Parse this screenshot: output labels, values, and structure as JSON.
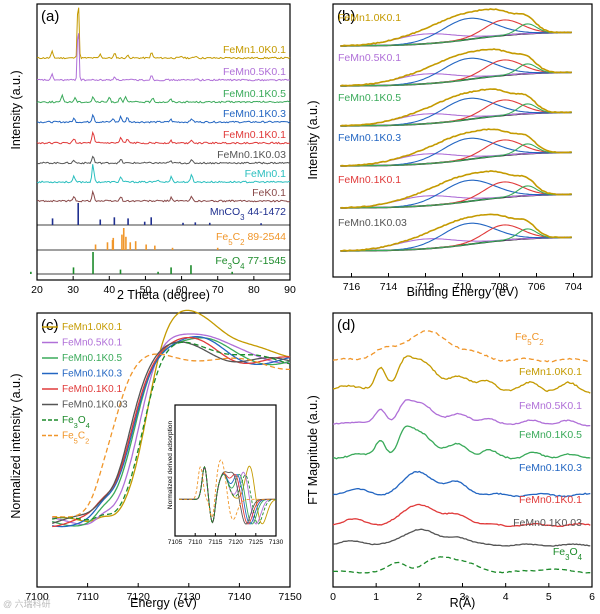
{
  "colors": {
    "gold": "#c49a00",
    "purple": "#b070d8",
    "green": "#3aaa5a",
    "blue": "#2366c2",
    "red": "#e03a3a",
    "dark": "#555555",
    "teal": "#2bbfbf",
    "brown": "#8a4a4a",
    "navy": "#1f2f8f",
    "orange": "#f0962a",
    "darkgreen": "#1c8a2a"
  },
  "chart_data": [
    {
      "panel": "(a)",
      "type": "line",
      "title": "",
      "xlabel": "2 Theta (degree)",
      "ylabel": "Intensity (a.u.)",
      "xlim": [
        20,
        90
      ],
      "xticks": [
        20,
        30,
        40,
        50,
        60,
        70,
        80,
        90
      ],
      "series": [
        {
          "name": "FeMn1.0K0.1",
          "color": "gold",
          "peaks": [
            [
              24.2,
              0.35
            ],
            [
              31.4,
              1.0
            ],
            [
              37.5,
              0.2
            ],
            [
              41.5,
              0.25
            ],
            [
              45.2,
              0.15
            ],
            [
              51.7,
              0.3
            ],
            [
              60,
              0.1
            ],
            [
              64,
              0.12
            ]
          ]
        },
        {
          "name": "FeMn0.5K0.1",
          "color": "purple",
          "peaks": [
            [
              24.2,
              0.3
            ],
            [
              31.4,
              0.9
            ],
            [
              41.5,
              0.2
            ],
            [
              51.7,
              0.25
            ],
            [
              64,
              0.1
            ]
          ]
        },
        {
          "name": "FeMn0.1K0.5",
          "color": "green",
          "peaks": [
            [
              27,
              0.35
            ],
            [
              30.5,
              0.25
            ],
            [
              35.5,
              0.3
            ],
            [
              40,
              0.25
            ],
            [
              43,
              0.3
            ],
            [
              44.5,
              0.25
            ],
            [
              52,
              0.2
            ],
            [
              57,
              0.15
            ]
          ]
        },
        {
          "name": "FeMn0.1K0.3",
          "color": "blue",
          "peaks": [
            [
              30.2,
              0.2
            ],
            [
              35.5,
              0.45
            ],
            [
              41,
              0.2
            ],
            [
              43.2,
              0.3
            ],
            [
              45,
              0.25
            ],
            [
              57,
              0.15
            ],
            [
              62.8,
              0.2
            ]
          ]
        },
        {
          "name": "FeMn0.1K0.1",
          "color": "red",
          "peaks": [
            [
              30.2,
              0.25
            ],
            [
              35.5,
              0.6
            ],
            [
              43.2,
              0.3
            ],
            [
              45,
              0.2
            ],
            [
              57,
              0.15
            ],
            [
              62.8,
              0.2
            ]
          ]
        },
        {
          "name": "FeMn0.1K0.03",
          "color": "dark",
          "peaks": [
            [
              30.2,
              0.15
            ],
            [
              35.5,
              0.4
            ],
            [
              43.2,
              0.2
            ],
            [
              57,
              0.1
            ],
            [
              62.8,
              0.15
            ]
          ]
        },
        {
          "name": "FeMn0.1",
          "color": "teal",
          "peaks": [
            [
              30.2,
              0.3
            ],
            [
              35.5,
              0.9
            ],
            [
              43.2,
              0.3
            ],
            [
              53.5,
              0.15
            ],
            [
              57.2,
              0.3
            ],
            [
              62.8,
              0.4
            ]
          ]
        },
        {
          "name": "FeK0.1",
          "color": "brown",
          "peaks": [
            [
              30.2,
              0.25
            ],
            [
              35.5,
              0.55
            ],
            [
              43.2,
              0.25
            ],
            [
              57.2,
              0.2
            ],
            [
              62.8,
              0.25
            ]
          ]
        }
      ],
      "references": [
        {
          "name": "MnCO3 44-1472",
          "base": "MnCO",
          "sub": "3",
          "rest": " 44-1472",
          "color": "navy",
          "sticks": [
            [
              24.3,
              0.3
            ],
            [
              31.4,
              1.0
            ],
            [
              37.5,
              0.25
            ],
            [
              41.4,
              0.35
            ],
            [
              45.2,
              0.3
            ],
            [
              49.8,
              0.15
            ],
            [
              51.6,
              0.35
            ],
            [
              60.4,
              0.1
            ],
            [
              63.8,
              0.12
            ],
            [
              67.8,
              0.1
            ],
            [
              82,
              0.08
            ]
          ]
        },
        {
          "name": "Fe5C2 89-2544",
          "base": "Fe",
          "sub": "5",
          "mid": "C",
          "sub2": "2",
          "rest": " 89-2544",
          "color": "orange",
          "sticks": [
            [
              36.2,
              0.25
            ],
            [
              39.5,
              0.35
            ],
            [
              40.9,
              0.45
            ],
            [
              41.1,
              0.55
            ],
            [
              43.5,
              0.7
            ],
            [
              44.0,
              1.0
            ],
            [
              44.6,
              0.6
            ],
            [
              45.8,
              0.35
            ],
            [
              47.3,
              0.4
            ],
            [
              50.2,
              0.25
            ],
            [
              52.6,
              0.2
            ],
            [
              57.5,
              0.1
            ],
            [
              70,
              0.1
            ]
          ]
        },
        {
          "name": "Fe3O4 77-1545",
          "base": "Fe",
          "sub": "3",
          "mid": "O",
          "sub2": "4",
          "rest": " 77-1545",
          "color": "darkgreen",
          "sticks": [
            [
              18.3,
              0.1
            ],
            [
              30.1,
              0.3
            ],
            [
              35.5,
              1.0
            ],
            [
              43.1,
              0.2
            ],
            [
              53.5,
              0.1
            ],
            [
              57.1,
              0.3
            ],
            [
              62.6,
              0.4
            ],
            [
              74,
              0.1
            ]
          ]
        }
      ]
    },
    {
      "panel": "(b)",
      "type": "line",
      "title": "",
      "xlabel": "Binding Energy (eV)",
      "ylabel": "Intensity (a.u.)",
      "xlim": [
        717,
        703
      ],
      "xticks": [
        716,
        714,
        712,
        710,
        708,
        706,
        704
      ],
      "samples": [
        {
          "name": "FeMn1.0K0.1",
          "color": "gold"
        },
        {
          "name": "FeMn0.5K0.1",
          "color": "purple"
        },
        {
          "name": "FeMn0.1K0.5",
          "color": "green"
        },
        {
          "name": "FeMn0.1K0.3",
          "color": "blue"
        },
        {
          "name": "FeMn0.1K0.1",
          "color": "red"
        },
        {
          "name": "FeMn0.1K0.03",
          "color": "dark"
        }
      ],
      "components": [
        {
          "center": 712.0,
          "width": 1.6,
          "height": 0.35,
          "color": "#b070d8"
        },
        {
          "center": 709.7,
          "width": 1.4,
          "height": 0.75,
          "color": "#2366c2"
        },
        {
          "center": 707.8,
          "width": 1.0,
          "height": 0.55,
          "color": "#e03a3a"
        },
        {
          "center": 706.5,
          "width": 0.5,
          "height": 0.35,
          "color": "#3aaa5a"
        }
      ]
    },
    {
      "panel": "(c)",
      "type": "line",
      "title": "",
      "xlabel": "Energy (eV)",
      "ylabel": "Normalized intensity (a.u.)",
      "xlim": [
        7100,
        7150
      ],
      "xticks": [
        7100,
        7110,
        7120,
        7130,
        7140,
        7150
      ],
      "legend": [
        {
          "name": "FeMn1.0K0.1",
          "color": "gold",
          "dash": false
        },
        {
          "name": "FeMn0.5K0.1",
          "color": "purple",
          "dash": false
        },
        {
          "name": "FeMn0.1K0.5",
          "color": "green",
          "dash": false
        },
        {
          "name": "FeMn0.1K0.3",
          "color": "blue",
          "dash": false
        },
        {
          "name": "FeMn0.1K0.1",
          "color": "red",
          "dash": false
        },
        {
          "name": "FeMn0.1K0.03",
          "color": "dark",
          "dash": false
        },
        {
          "name": "Fe3O4",
          "base": "Fe",
          "sub": "3",
          "mid": "O",
          "sub2": "4",
          "color": "darkgreen",
          "dash": true
        },
        {
          "name": "Fe5C2",
          "base": "Fe",
          "sub": "5",
          "mid": "C",
          "sub2": "2",
          "color": "orange",
          "dash": true
        }
      ],
      "edges": [
        {
          "color": "gold",
          "e0": 7122.0,
          "peak": 1.45,
          "dash": false
        },
        {
          "color": "purple",
          "e0": 7120.5,
          "peak": 1.28,
          "dash": false
        },
        {
          "color": "green",
          "e0": 7119.5,
          "peak": 1.22,
          "dash": false
        },
        {
          "color": "blue",
          "e0": 7119.0,
          "peak": 1.2,
          "dash": false
        },
        {
          "color": "red",
          "e0": 7118.5,
          "peak": 1.18,
          "dash": false
        },
        {
          "color": "dark",
          "e0": 7118.0,
          "peak": 1.15,
          "dash": false
        },
        {
          "color": "darkgreen",
          "e0": 7121.0,
          "peak": 1.2,
          "dash": true
        },
        {
          "color": "orange",
          "e0": 7114.5,
          "peak": 1.08,
          "dash": true
        }
      ],
      "inset": {
        "ylabel": "Normalized derived adsorption",
        "xlim": [
          7105,
          7130
        ],
        "xticks": [
          7105,
          7110,
          7115,
          7120,
          7125,
          7130
        ]
      }
    },
    {
      "panel": "(d)",
      "type": "line",
      "title": "",
      "xlabel": "R(Å)",
      "ylabel": "FT Magnitude (a.u.)",
      "xlim": [
        0,
        6
      ],
      "xticks": [
        0,
        1,
        2,
        3,
        4,
        5,
        6
      ],
      "series": [
        {
          "name": "Fe5C2",
          "base": "Fe",
          "sub": "5",
          "mid": "C",
          "sub2": "2",
          "color": "orange",
          "dash": true
        },
        {
          "name": "FeMn1.0K0.1",
          "color": "gold",
          "dash": false
        },
        {
          "name": "FeMn0.5K0.1",
          "color": "purple",
          "dash": false
        },
        {
          "name": "FeMn0.1K0.5",
          "color": "green",
          "dash": false
        },
        {
          "name": "FeMn0.1K0.3",
          "color": "blue",
          "dash": false
        },
        {
          "name": "FeMn0.1K0.1",
          "color": "red",
          "dash": false
        },
        {
          "name": "FeMn0.1K0.03",
          "color": "dark",
          "dash": false
        },
        {
          "name": "Fe3O4",
          "base": "Fe",
          "sub": "3",
          "mid": "O",
          "sub2": "4",
          "color": "darkgreen",
          "dash": true
        }
      ]
    }
  ],
  "watermark": "@ 六瑞科研"
}
